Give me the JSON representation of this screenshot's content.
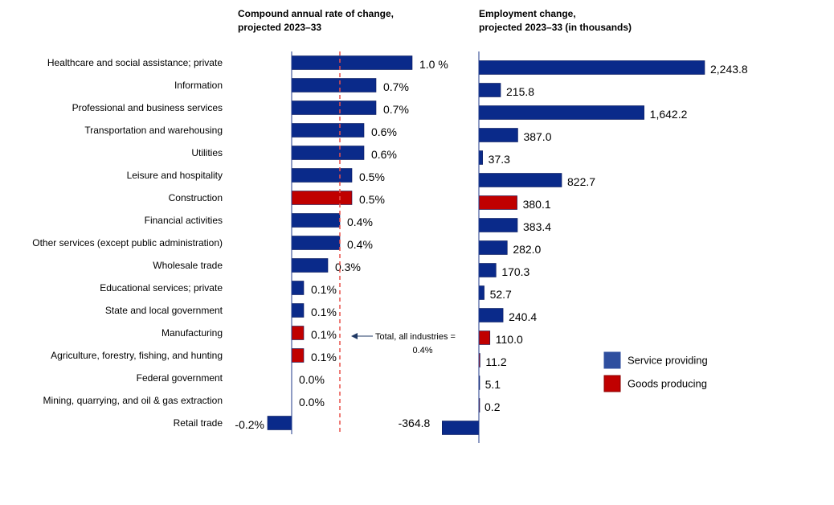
{
  "chart_data": [
    {
      "type": "bar",
      "orientation": "horizontal",
      "title": "Compound annual rate of change, projected 2023–33",
      "categories": [
        "Healthcare and social assistance; private",
        "Information",
        "Professional and business services",
        "Transportation and warehousing",
        "Utilities",
        "Leisure and hospitality",
        "Construction",
        "Financial activities",
        "Other services (except public administration)",
        "Wholesale trade",
        "Educational services; private",
        "State and local government",
        "Manufacturing",
        "Agriculture, forestry, fishing, and hunting",
        "Federal government",
        "Mining, quarrying, and oil & gas extraction",
        "Retail trade"
      ],
      "values": [
        1.0,
        0.7,
        0.7,
        0.6,
        0.6,
        0.5,
        0.5,
        0.4,
        0.4,
        0.3,
        0.1,
        0.1,
        0.1,
        0.1,
        0.0,
        0.0,
        -0.2
      ],
      "labels": [
        "1.0 %",
        "0.7%",
        "0.7%",
        "0.6%",
        "0.6%",
        "0.5%",
        "0.5%",
        "0.4%",
        "0.4%",
        "0.3%",
        "0.1%",
        "0.1%",
        "0.1%",
        "0.1%",
        "0.0%",
        "0.0%",
        "-0.2%"
      ],
      "groups": [
        "service",
        "service",
        "service",
        "service",
        "service",
        "service",
        "goods",
        "service",
        "service",
        "service",
        "service",
        "service",
        "goods",
        "goods",
        "service",
        "goods",
        "service"
      ],
      "reference_line": {
        "value": 0.4,
        "label_line1": "Total, all industries =",
        "label_line2": "0.4%"
      }
    },
    {
      "type": "bar",
      "orientation": "horizontal",
      "title": "Employment change, projected 2023–33 (in thousands)",
      "values": [
        2243.8,
        215.8,
        1642.2,
        387.0,
        37.3,
        822.7,
        380.1,
        383.4,
        282.0,
        170.3,
        52.7,
        240.4,
        110.0,
        11.2,
        5.1,
        0.2,
        -364.8
      ],
      "labels": [
        "2,243.8",
        "215.8",
        "1,642.2",
        "387.0",
        "37.3",
        "822.7",
        "380.1",
        "383.4",
        "282.0",
        "170.3",
        "52.7",
        "240.4",
        "110.0",
        "11.2",
        "5.1",
        "0.2",
        "-364.8"
      ]
    }
  ],
  "titles": {
    "left_line1": "Compound annual rate of change,",
    "left_line2": "projected 2023–33",
    "right_line1": "Employment change,",
    "right_line2": "projected 2023–33 (in thousands)"
  },
  "legend": [
    {
      "key": "service",
      "label": "Service providing",
      "color": "#0a2a8a"
    },
    {
      "key": "goods",
      "label": "Goods producing",
      "color": "#c00000"
    }
  ],
  "colors": {
    "service": "#0a2a8a",
    "goods": "#c00000",
    "reference": "#e8504a",
    "axis": "#1f3a8a"
  }
}
